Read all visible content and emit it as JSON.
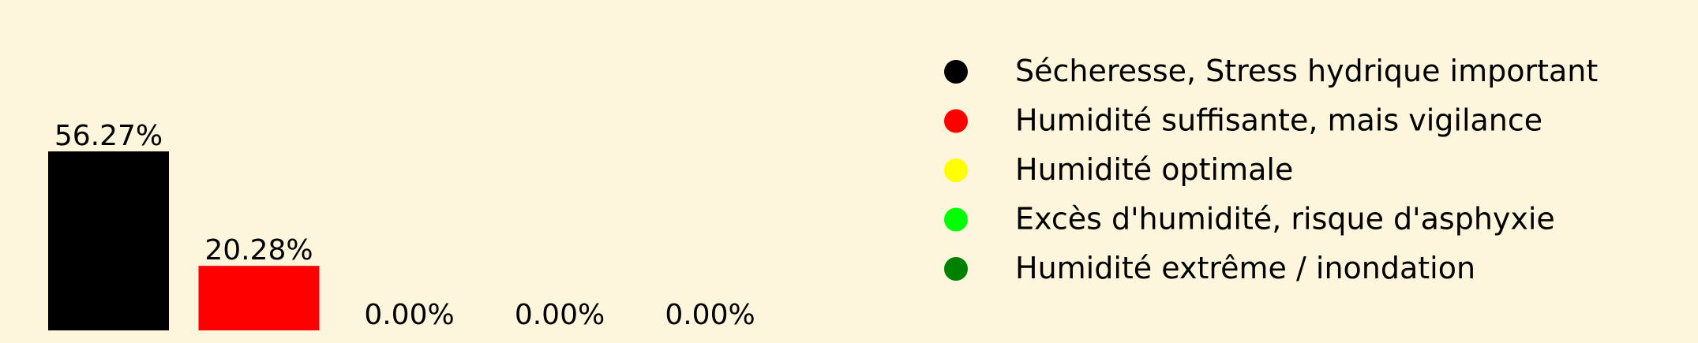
{
  "chart_data": {
    "type": "bar",
    "categories": [
      "Sécheresse, Stress hydrique important",
      "Humidité suffisante, mais vigilance",
      "Humidité optimale",
      "Excès d'humidité, risque d'asphyxie",
      "Humidité extrême / inondation"
    ],
    "values": [
      56.27,
      20.28,
      0.0,
      0.0,
      0.0
    ],
    "value_labels": [
      "56.27%",
      "20.28%",
      "0.00%",
      "0.00%",
      "0.00%"
    ],
    "colors": [
      "#000000",
      "#ff0000",
      "#ffff00",
      "#00ff00",
      "#008000"
    ],
    "unit": "%",
    "ylim": [
      0,
      100
    ],
    "grid": false,
    "axes_visible": false,
    "legend": {
      "placement": "right",
      "entries": [
        {
          "label": "Sécheresse, Stress hydrique important",
          "color": "#000000"
        },
        {
          "label": "Humidité suffisante, mais vigilance",
          "color": "#ff0000"
        },
        {
          "label": "Humidité optimale",
          "color": "#ffff00"
        },
        {
          "label": "Excès d'humidité, risque d'asphyxie",
          "color": "#00ff00"
        },
        {
          "label": "Humidité extrême / inondation",
          "color": "#008000"
        }
      ]
    }
  },
  "colors": {
    "background": "#fdf6dc"
  }
}
